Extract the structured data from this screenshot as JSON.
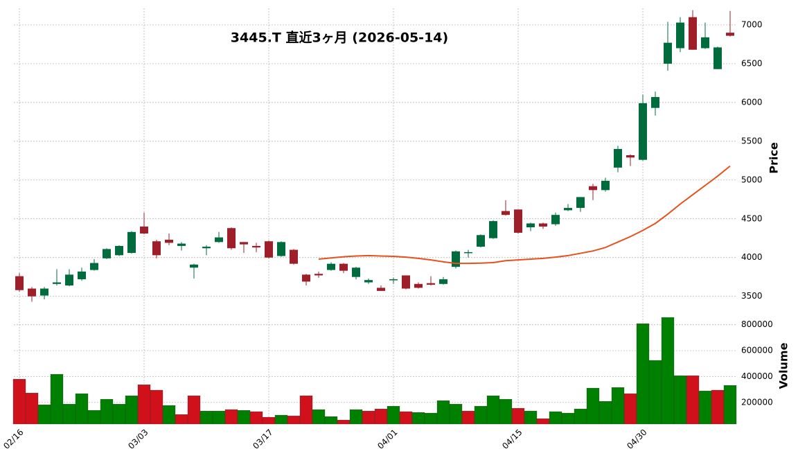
{
  "chart_data": {
    "type": "candlestick",
    "title": "3445.T 直近3ヶ月 (2026-05-14)",
    "categories": [
      "02/16",
      null,
      null,
      null,
      null,
      null,
      null,
      null,
      null,
      null,
      "03/03",
      null,
      null,
      null,
      null,
      null,
      null,
      null,
      null,
      null,
      "03/17",
      null,
      null,
      null,
      null,
      null,
      null,
      null,
      null,
      null,
      "04/01",
      null,
      null,
      null,
      null,
      null,
      null,
      null,
      null,
      null,
      "04/15",
      null,
      null,
      null,
      null,
      null,
      null,
      null,
      null,
      null,
      "04/30",
      null,
      null,
      null,
      null,
      null,
      null,
      null
    ],
    "open": [
      3760,
      3600,
      3510,
      3660,
      3640,
      3720,
      3840,
      3990,
      4030,
      4060,
      4400,
      4210,
      4230,
      4150,
      3870,
      4120,
      4200,
      4380,
      4200,
      4150,
      4210,
      4020,
      4100,
      3780,
      3790,
      3840,
      3920,
      3750,
      3680,
      3610,
      3710,
      3770,
      3660,
      3670,
      3660,
      3880,
      4070,
      4140,
      4250,
      4600,
      4620,
      4390,
      4440,
      4430,
      4610,
      4640,
      4920,
      4870,
      5160,
      5320,
      5260,
      5930,
      6500,
      6700,
      7100,
      6700,
      6430,
      6900
    ],
    "high": [
      3800,
      3620,
      3620,
      3850,
      3850,
      3870,
      3980,
      4120,
      4160,
      4340,
      4580,
      4230,
      4310,
      4200,
      3920,
      4160,
      4330,
      4390,
      4200,
      4190,
      4220,
      4210,
      4110,
      3790,
      3820,
      3940,
      3930,
      3880,
      3730,
      3640,
      3740,
      3770,
      3680,
      3760,
      3750,
      4090,
      4100,
      4300,
      4480,
      4740,
      4620,
      4450,
      4450,
      4580,
      4690,
      4780,
      4950,
      5030,
      5440,
      5330,
      6100,
      6140,
      7040,
      7100,
      7190,
      7030,
      6720,
      7180
    ],
    "low": [
      3560,
      3430,
      3460,
      3640,
      3630,
      3700,
      3830,
      3980,
      4020,
      4050,
      4300,
      3990,
      4160,
      4090,
      3730,
      4030,
      4190,
      4100,
      4060,
      4070,
      3990,
      4010,
      3910,
      3640,
      3740,
      3830,
      3800,
      3720,
      3660,
      3570,
      3660,
      3590,
      3600,
      3640,
      3650,
      3860,
      4000,
      4130,
      4240,
      4540,
      4310,
      4340,
      4370,
      4410,
      4600,
      4590,
      4740,
      4850,
      5100,
      5180,
      5250,
      5830,
      6410,
      6650,
      6680,
      6690,
      6430,
      6850
    ],
    "close": [
      3580,
      3500,
      3600,
      3680,
      3780,
      3820,
      3930,
      4110,
      4150,
      4330,
      4310,
      4030,
      4190,
      4180,
      3910,
      4140,
      4260,
      4120,
      4170,
      4130,
      4000,
      4200,
      3920,
      3690,
      3770,
      3920,
      3830,
      3870,
      3710,
      3570,
      3720,
      3600,
      3610,
      3650,
      3720,
      4080,
      4070,
      4290,
      4470,
      4550,
      4320,
      4440,
      4400,
      4550,
      4640,
      4780,
      4870,
      4990,
      5400,
      5290,
      5990,
      6070,
      6770,
      7030,
      6680,
      6840,
      6710,
      6860
    ],
    "up_color": "#006b3c",
    "down_color": "#9e1f2a",
    "ma_values": [
      null,
      null,
      null,
      null,
      null,
      null,
      null,
      null,
      null,
      null,
      null,
      null,
      null,
      null,
      null,
      null,
      null,
      null,
      null,
      null,
      null,
      null,
      null,
      null,
      3980,
      3995,
      4010,
      4020,
      4025,
      4020,
      4015,
      4005,
      3990,
      3970,
      3945,
      3925,
      3925,
      3928,
      3935,
      3960,
      3970,
      3980,
      3990,
      4005,
      4025,
      4055,
      4085,
      4130,
      4200,
      4270,
      4350,
      4440,
      4560,
      4690,
      4810,
      4930,
      5050,
      5180
    ],
    "ma_color": "#e8501a",
    "ylim": [
      3390,
      7214
    ],
    "yticks": [
      3500,
      4000,
      4500,
      5000,
      5500,
      6000,
      6500,
      7000
    ],
    "ylabel": "Price",
    "grid": true,
    "volume": {
      "values": [
        380000,
        273000,
        182000,
        418000,
        187000,
        268000,
        139000,
        225000,
        187000,
        252000,
        337000,
        295000,
        177000,
        107000,
        252000,
        134000,
        134000,
        145000,
        139000,
        129000,
        86000,
        102000,
        96000,
        252000,
        145000,
        91000,
        64000,
        145000,
        134000,
        150000,
        171000,
        129000,
        123000,
        118000,
        214000,
        187000,
        134000,
        171000,
        252000,
        225000,
        155000,
        134000,
        75000,
        129000,
        118000,
        150000,
        311000,
        209000,
        316000,
        268000,
        809000,
        525000,
        857000,
        407000,
        407000,
        289000,
        295000,
        332000
      ],
      "ylim": [
        33000,
        927000
      ],
      "yticks": [
        200000,
        400000,
        600000,
        800000
      ],
      "ylabel": "Volume",
      "up_color": "#008000",
      "down_color": "#d0111b"
    }
  }
}
